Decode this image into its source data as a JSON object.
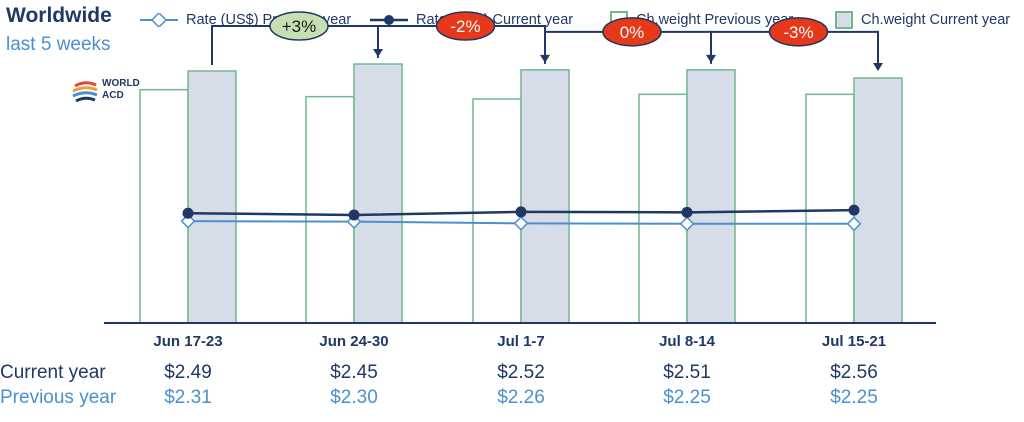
{
  "header": {
    "title": "Worldwide",
    "subtitle": "last 5 weeks"
  },
  "logo": {
    "text_line1": "WORLD",
    "text_line2": "ACD",
    "icon": "globe-swoosh-icon"
  },
  "legend": {
    "rate_prev": "Rate (US$) Previous year",
    "rate_cur": "Rate (US$) Current year",
    "weight_prev": "Ch.weight Previous year",
    "weight_cur": "Ch.weight Current year"
  },
  "colors": {
    "navy": "#1f3864",
    "light_blue": "#4a90d0",
    "green_border": "#70b88e",
    "bar_current_fill": "#d6dce8",
    "badge_up": "#c6e0b4",
    "badge_down": "#e8381a"
  },
  "table": {
    "row_current_label": "Current year",
    "row_previous_label": "Previous year",
    "current": [
      "$2.49",
      "$2.45",
      "$2.52",
      "$2.51",
      "$2.56"
    ],
    "previous": [
      "$2.31",
      "$2.30",
      "$2.26",
      "$2.25",
      "$2.25"
    ]
  },
  "chart_data": {
    "type": "bar",
    "categories": [
      "Jun 17-23",
      "Jun 24-30",
      "Jul 1-7",
      "Jul 8-14",
      "Jul 15-21"
    ],
    "series": [
      {
        "name": "Ch.weight Previous year",
        "type": "bar",
        "values": [
          200,
          194,
          192,
          196,
          196
        ]
      },
      {
        "name": "Ch.weight Current year",
        "type": "bar",
        "values": [
          216,
          222,
          217,
          217,
          210
        ]
      },
      {
        "name": "Rate (US$) Previous year",
        "type": "line",
        "values": [
          2.31,
          2.3,
          2.26,
          2.25,
          2.25
        ]
      },
      {
        "name": "Rate (US$) Current year",
        "type": "line",
        "values": [
          2.49,
          2.45,
          2.52,
          2.51,
          2.56
        ]
      }
    ],
    "weight_ylim": [
      0,
      240
    ],
    "rate_ylim": [
      0,
      6.35
    ],
    "changes": [
      {
        "label": "+3%",
        "direction": "up"
      },
      {
        "label": "-2%",
        "direction": "down"
      },
      {
        "label": "0%",
        "direction": "flat"
      },
      {
        "label": "-3%",
        "direction": "down"
      }
    ],
    "grid": false,
    "legend_position": "top"
  }
}
